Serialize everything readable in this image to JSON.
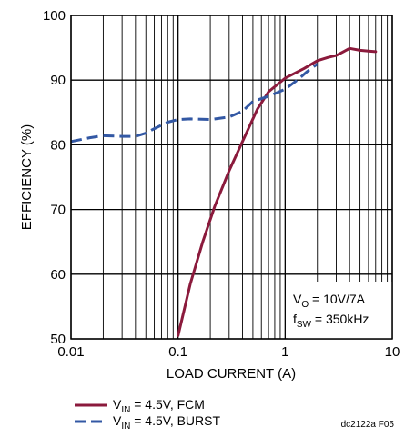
{
  "chart_data": {
    "type": "line",
    "xlabel": "LOAD CURRENT (A)",
    "ylabel": "EFFICIENCY (%)",
    "xscale": "log",
    "xlim": [
      0.01,
      10
    ],
    "ylim": [
      50,
      100
    ],
    "grid": true,
    "x_ticks": [
      {
        "value": 0.01,
        "label": "0.01"
      },
      {
        "value": 0.1,
        "label": "0.1"
      },
      {
        "value": 1,
        "label": "1"
      },
      {
        "value": 10,
        "label": "10"
      }
    ],
    "y_ticks": [
      {
        "value": 50,
        "label": "50"
      },
      {
        "value": 60,
        "label": "60"
      },
      {
        "value": 70,
        "label": "70"
      },
      {
        "value": 80,
        "label": "80"
      },
      {
        "value": 90,
        "label": "90"
      },
      {
        "value": 100,
        "label": "100"
      }
    ],
    "series": [
      {
        "name_parts": {
          "sym": "V",
          "sub": "IN",
          "rest": " = 4.5V, FCM"
        },
        "color": "#8b1a3c",
        "style": "solid",
        "points": [
          [
            0.1,
            50.5
          ],
          [
            0.13,
            58.5
          ],
          [
            0.17,
            65.0
          ],
          [
            0.22,
            70.5
          ],
          [
            0.3,
            76.0
          ],
          [
            0.4,
            80.5
          ],
          [
            0.55,
            85.5
          ],
          [
            0.7,
            88.2
          ],
          [
            1.0,
            90.3
          ],
          [
            1.5,
            91.8
          ],
          [
            2.0,
            93.0
          ],
          [
            2.5,
            93.5
          ],
          [
            3.0,
            93.8
          ],
          [
            3.5,
            94.4
          ],
          [
            4.0,
            94.9
          ],
          [
            5.0,
            94.6
          ],
          [
            6.0,
            94.5
          ],
          [
            7.0,
            94.4
          ]
        ]
      },
      {
        "name_parts": {
          "sym": "V",
          "sub": "IN",
          "rest": " = 4.5V, BURST"
        },
        "color": "#3358a4",
        "style": "dashed",
        "points": [
          [
            0.01,
            80.5
          ],
          [
            0.015,
            81.1
          ],
          [
            0.02,
            81.4
          ],
          [
            0.03,
            81.3
          ],
          [
            0.04,
            81.3
          ],
          [
            0.05,
            81.8
          ],
          [
            0.06,
            82.5
          ],
          [
            0.08,
            83.5
          ],
          [
            0.1,
            83.9
          ],
          [
            0.13,
            84.0
          ],
          [
            0.2,
            83.9
          ],
          [
            0.3,
            84.3
          ],
          [
            0.4,
            85.2
          ],
          [
            0.5,
            86.7
          ],
          [
            0.7,
            87.5
          ],
          [
            1.0,
            88.6
          ],
          [
            1.3,
            90.0
          ],
          [
            1.6,
            91.3
          ],
          [
            2.0,
            92.5
          ]
        ]
      }
    ],
    "annotations": [
      {
        "sym": "V",
        "sub": "O",
        "rest": " = 10V/7A"
      },
      {
        "sym": "f",
        "sub": "SW",
        "rest": " = 350kHz"
      }
    ],
    "credit": "dc2122a F05"
  }
}
